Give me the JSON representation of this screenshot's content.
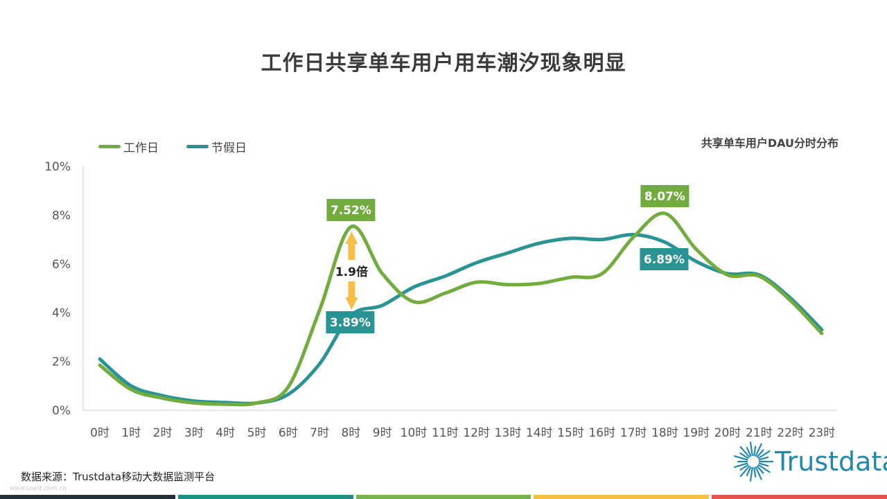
{
  "title": "工作日共享单车用户用车潮汐现象明显",
  "subtitle": "共享单车用户DAU分时分布",
  "source": "数据来源：Trustdata移动大数据监测平台",
  "logo_text": "Trustdata",
  "watermark": "www.useit.com.cn",
  "legend": [
    {
      "name": "工作日",
      "color": "#72ab3e"
    },
    {
      "name": "节假日",
      "color": "#2a9393"
    }
  ],
  "footer_colors": [
    "#263238",
    "#1f8f86",
    "#76b443",
    "#f5be45",
    "#e2564f"
  ],
  "chart_data": {
    "type": "line",
    "title": "共享单车用户DAU分时分布",
    "x": [
      "0时",
      "1时",
      "2时",
      "3时",
      "4时",
      "5时",
      "6时",
      "7时",
      "8时",
      "9时",
      "10时",
      "11时",
      "12时",
      "13时",
      "14时",
      "15时",
      "16时",
      "17时",
      "18时",
      "19时",
      "20时",
      "21时",
      "22时",
      "23时"
    ],
    "y_ticks": [
      "0%",
      "2%",
      "4%",
      "6%",
      "8%",
      "10%"
    ],
    "ylim": [
      0,
      10
    ],
    "series": [
      {
        "name": "工作日",
        "color": "#72ab3e",
        "values": [
          1.85,
          0.85,
          0.5,
          0.3,
          0.25,
          0.3,
          0.95,
          4.1,
          7.52,
          5.6,
          4.45,
          4.8,
          5.25,
          5.15,
          5.2,
          5.45,
          5.6,
          7.1,
          8.07,
          6.6,
          5.55,
          5.5,
          4.5,
          3.15
        ]
      },
      {
        "name": "节假日",
        "color": "#2a9393",
        "values": [
          2.1,
          1.0,
          0.6,
          0.38,
          0.32,
          0.3,
          0.65,
          1.9,
          3.89,
          4.3,
          5.05,
          5.5,
          6.05,
          6.45,
          6.85,
          7.05,
          7.0,
          7.2,
          6.89,
          6.1,
          5.6,
          5.55,
          4.6,
          3.3
        ]
      }
    ],
    "annotations": {
      "work_8": "7.52%",
      "holiday_8": "3.89%",
      "ratio": "1.9倍",
      "work_18": "8.07%",
      "holiday_18": "6.89%"
    },
    "grid": false,
    "legend_position": "top-left"
  }
}
